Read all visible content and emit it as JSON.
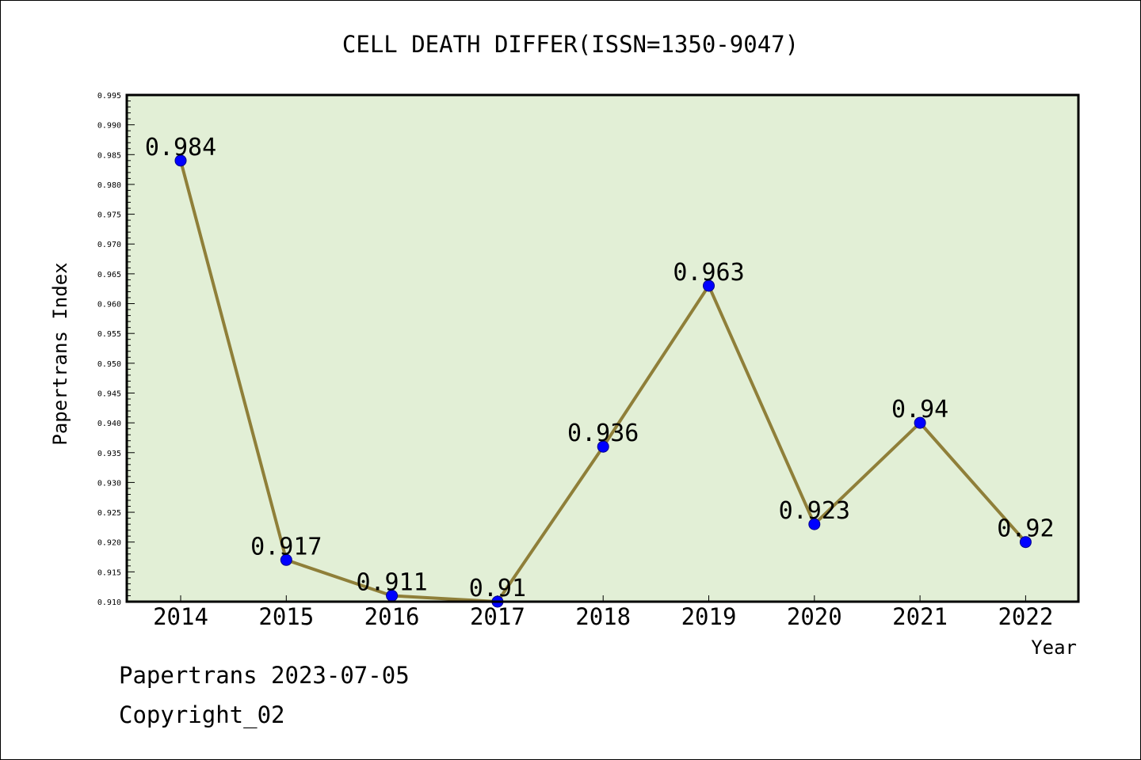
{
  "chart_data": {
    "type": "line",
    "title": "CELL DEATH DIFFER(ISSN=1350-9047)",
    "xlabel": "Year",
    "ylabel": "Papertrans Index",
    "categories": [
      "2014",
      "2015",
      "2016",
      "2017",
      "2018",
      "2019",
      "2020",
      "2021",
      "2022"
    ],
    "values": [
      0.984,
      0.917,
      0.911,
      0.91,
      0.936,
      0.963,
      0.923,
      0.94,
      0.92
    ],
    "data_labels": [
      "0.984",
      "0.917",
      "0.911",
      "0.91",
      "0.936",
      "0.963",
      "0.923",
      "0.94",
      "0.92"
    ],
    "ylim": [
      0.91,
      0.995
    ],
    "yticks": [
      "0.910",
      "0.915",
      "0.920",
      "0.925",
      "0.930",
      "0.935",
      "0.940",
      "0.945",
      "0.950",
      "0.955",
      "0.960",
      "0.965",
      "0.970",
      "0.975",
      "0.980",
      "0.985",
      "0.990",
      "0.995"
    ],
    "grid": false,
    "colors": {
      "plot_background": "#e2efd6",
      "line": "#8f7f39",
      "marker": "#0000ff",
      "axis": "#000000"
    }
  },
  "footer": {
    "line1": "Papertrans 2023-07-05",
    "line2": "Copyright_02"
  }
}
